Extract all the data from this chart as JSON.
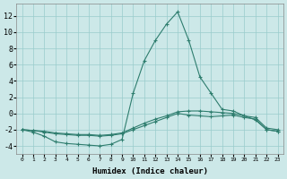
{
  "xlabel": "Humidex (Indice chaleur)",
  "bg_color": "#cce8e8",
  "line_color": "#2e7d6e",
  "grid_color": "#99cccc",
  "xlim": [
    -0.5,
    23.5
  ],
  "ylim": [
    -5,
    13.5
  ],
  "yticks": [
    -4,
    -2,
    0,
    2,
    4,
    6,
    8,
    10,
    12
  ],
  "xticks": [
    0,
    1,
    2,
    3,
    4,
    5,
    6,
    7,
    8,
    9,
    10,
    11,
    12,
    13,
    14,
    15,
    16,
    17,
    18,
    19,
    20,
    21,
    22,
    23
  ],
  "line1_x": [
    0,
    1,
    2,
    3,
    4,
    5,
    6,
    7,
    8,
    9,
    10,
    11,
    12,
    13,
    14,
    15,
    16,
    17,
    18,
    19,
    20,
    21,
    22,
    23
  ],
  "line1_y": [
    -2,
    -2.3,
    -2.8,
    -3.5,
    -3.7,
    -3.8,
    -3.9,
    -4.0,
    -3.8,
    -3.2,
    2.5,
    6.5,
    9.0,
    11.0,
    12.5,
    9.0,
    4.5,
    2.5,
    0.5,
    0.3,
    -0.3,
    -0.8,
    -2.0,
    -2.2
  ],
  "line2_x": [
    0,
    1,
    2,
    3,
    4,
    5,
    6,
    7,
    8,
    9,
    10,
    11,
    12,
    13,
    14,
    15,
    16,
    17,
    18,
    19,
    20,
    21,
    22,
    23
  ],
  "line2_y": [
    -2,
    -2.1,
    -2.3,
    -2.5,
    -2.6,
    -2.7,
    -2.7,
    -2.8,
    -2.7,
    -2.5,
    -2.0,
    -1.5,
    -1.0,
    -0.5,
    0.0,
    -0.2,
    -0.3,
    -0.4,
    -0.3,
    -0.2,
    -0.5,
    -0.7,
    -2.0,
    -2.2
  ],
  "line3_x": [
    0,
    1,
    2,
    3,
    4,
    5,
    6,
    7,
    8,
    9,
    10,
    11,
    12,
    13,
    14,
    15,
    16,
    17,
    18,
    19,
    20,
    21,
    22,
    23
  ],
  "line3_y": [
    -2,
    -2.1,
    -2.2,
    -2.4,
    -2.5,
    -2.6,
    -2.6,
    -2.7,
    -2.6,
    -2.4,
    -1.8,
    -1.2,
    -0.7,
    -0.3,
    0.2,
    0.3,
    0.3,
    0.2,
    0.1,
    0.0,
    -0.3,
    -0.5,
    -1.8,
    -2.0
  ]
}
